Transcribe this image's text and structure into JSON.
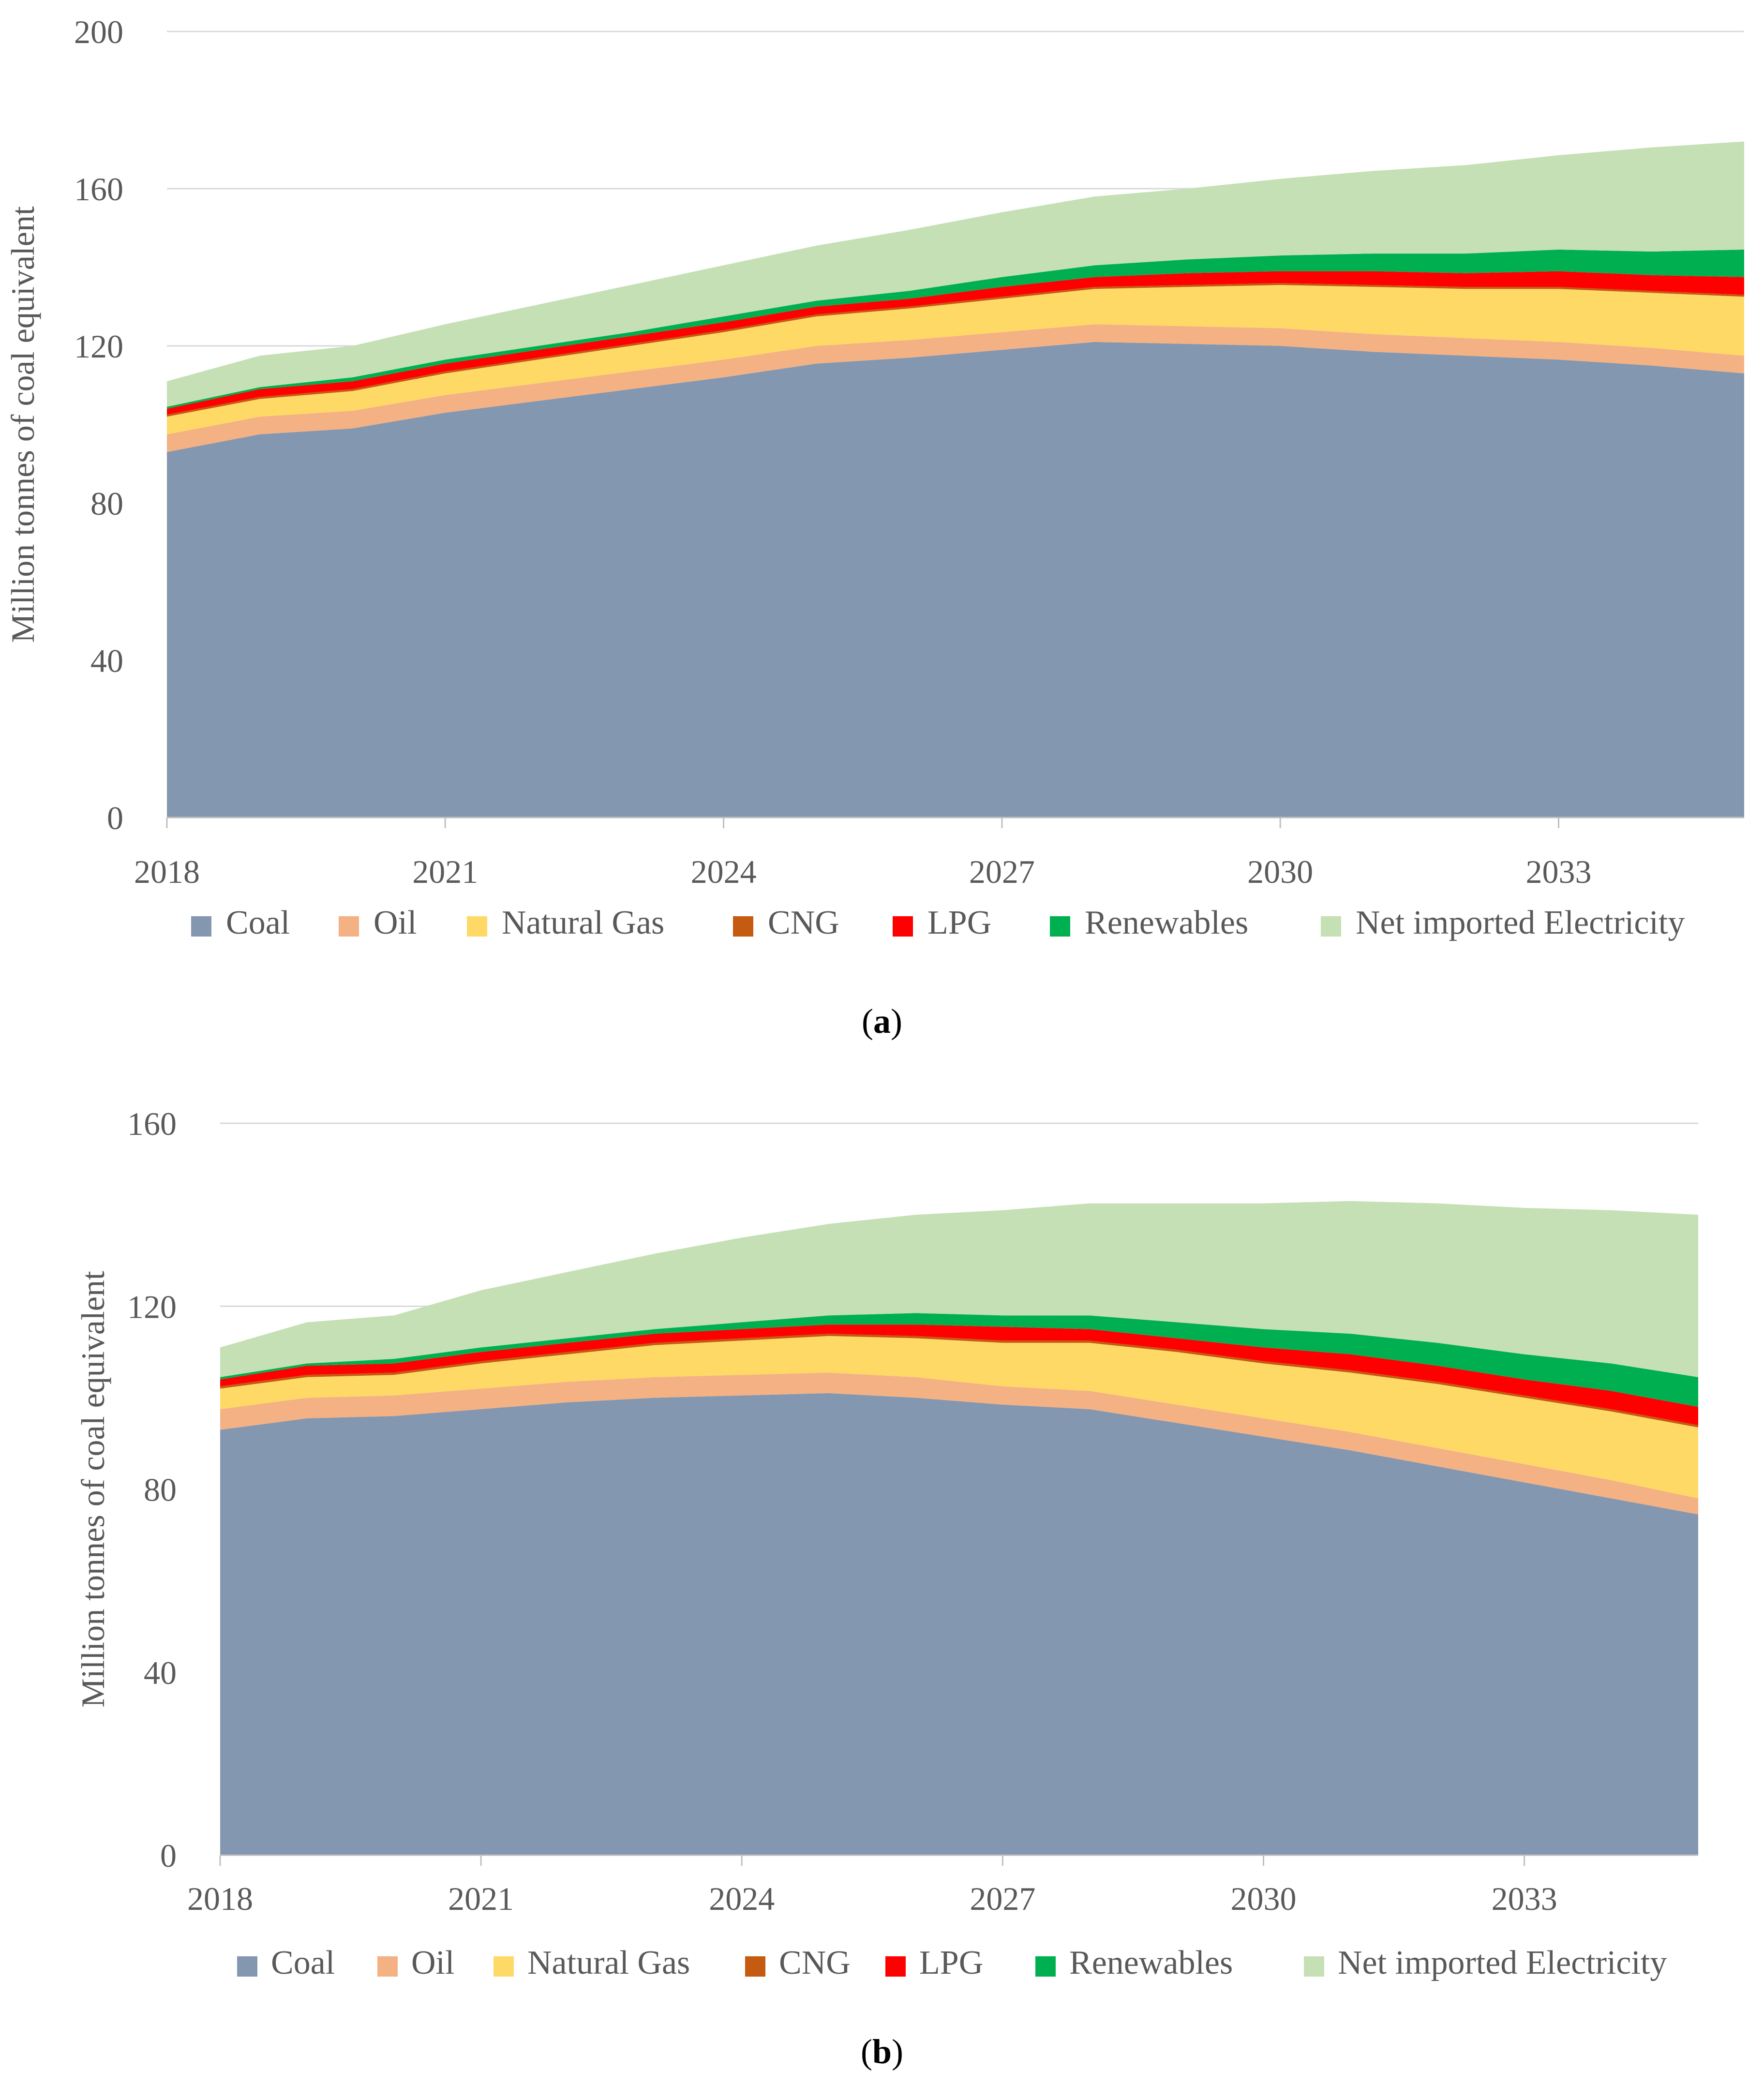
{
  "colors": {
    "Coal": "#8497b0",
    "Oil": "#f4b183",
    "Natural Gas": "#ffd966",
    "CNG": "#c55a11",
    "LPG": "#ff0000",
    "Renewables": "#00b050",
    "Net imported Electricity": "#c5e0b4",
    "grid": "#d9d9d9",
    "axis": "#bfbfbf"
  },
  "captions": {
    "a": "a",
    "b": "b"
  },
  "chart_data": [
    {
      "type": "area",
      "stacked": true,
      "id": "a",
      "title": "",
      "xlabel": "",
      "ylabel": "Million tonnes of coal equivalent",
      "ylim": [
        0,
        200
      ],
      "yticks": [
        0,
        40,
        80,
        120,
        160,
        200
      ],
      "xlim": [
        2018,
        2035
      ],
      "xticks": [
        2018,
        2021,
        2024,
        2027,
        2030,
        2033
      ],
      "grid": true,
      "legend_position": "bottom",
      "x": [
        2018,
        2019,
        2020,
        2021,
        2022,
        2023,
        2024,
        2025,
        2026,
        2027,
        2028,
        2029,
        2030,
        2031,
        2032,
        2033,
        2034,
        2035
      ],
      "series": [
        {
          "name": "Coal",
          "values": [
            93,
            97.5,
            99,
            103,
            106,
            109,
            112,
            115.5,
            117,
            119,
            121,
            120.5,
            120,
            118.5,
            117.5,
            116.5,
            115,
            113
          ]
        },
        {
          "name": "Oil",
          "values": [
            4.5,
            4.5,
            4.5,
            4.5,
            4.5,
            4.5,
            4.5,
            4.5,
            4.5,
            4.5,
            4.5,
            4.5,
            4.5,
            4.5,
            4.5,
            4.5,
            4.5,
            4.5
          ]
        },
        {
          "name": "Natural Gas",
          "values": [
            4.5,
            4.5,
            5,
            5.5,
            6,
            6.5,
            7,
            7.5,
            8,
            8.5,
            9,
            10,
            11,
            12,
            12.5,
            13.5,
            14,
            15
          ]
        },
        {
          "name": "CNG",
          "values": [
            0.5,
            0.5,
            0.5,
            0.5,
            0.5,
            0.5,
            0.5,
            0.5,
            0.5,
            0.5,
            0.5,
            0.5,
            0.5,
            0.5,
            0.5,
            0.5,
            0.5,
            0.5
          ]
        },
        {
          "name": "LPG",
          "values": [
            1.5,
            2,
            2,
            2,
            2,
            2,
            2,
            2,
            2,
            2.5,
            2.5,
            3,
            3,
            3.5,
            3.5,
            4,
            4,
            4.5
          ]
        },
        {
          "name": "Renewables",
          "values": [
            0.5,
            0.5,
            1,
            1,
            1,
            1,
            1.5,
            1.5,
            2,
            2.5,
            3,
            3.5,
            4,
            4.5,
            5,
            5.5,
            6,
            7
          ]
        },
        {
          "name": "Net imported Electricity",
          "values": [
            6.5,
            8,
            8,
            9,
            10.5,
            12,
            13,
            14,
            15.5,
            16.5,
            17.5,
            18,
            19.5,
            21,
            22.5,
            24,
            26.5,
            27.5
          ]
        }
      ]
    },
    {
      "type": "area",
      "stacked": true,
      "id": "b",
      "title": "",
      "xlabel": "",
      "ylabel": "Million tonnes of coal equivalent",
      "ylim": [
        0,
        160
      ],
      "yticks": [
        0,
        40,
        80,
        120,
        160
      ],
      "xlim": [
        2018,
        2035
      ],
      "xticks": [
        2018,
        2021,
        2024,
        2027,
        2030,
        2033
      ],
      "grid": true,
      "legend_position": "bottom",
      "x": [
        2018,
        2019,
        2020,
        2021,
        2022,
        2023,
        2024,
        2025,
        2026,
        2027,
        2028,
        2029,
        2030,
        2031,
        2032,
        2033,
        2034,
        2035
      ],
      "series": [
        {
          "name": "Coal",
          "values": [
            93,
            95.5,
            96,
            97.5,
            99,
            100,
            100.5,
            101,
            100,
            98.5,
            97.5,
            94.5,
            91.5,
            88.5,
            85,
            81.5,
            78,
            74.5
          ]
        },
        {
          "name": "Oil",
          "values": [
            4.5,
            4.5,
            4.5,
            4.5,
            4.5,
            4.5,
            4.5,
            4.5,
            4.5,
            4,
            4,
            4,
            4,
            4,
            4,
            4,
            4,
            3.5
          ]
        },
        {
          "name": "Natural Gas",
          "values": [
            4.5,
            4.5,
            4.5,
            5.5,
            6,
            7,
            7.5,
            8,
            8.5,
            9.5,
            10.5,
            11.5,
            12,
            13,
            14,
            14.5,
            15,
            15.5
          ]
        },
        {
          "name": "CNG",
          "values": [
            0.5,
            0.5,
            0.5,
            0.5,
            0.5,
            0.5,
            0.5,
            0.5,
            0.5,
            0.5,
            0.5,
            0.5,
            0.5,
            0.5,
            0.5,
            0.5,
            0.5,
            0.5
          ]
        },
        {
          "name": "LPG",
          "values": [
            1.5,
            2,
            2,
            2,
            2,
            2,
            2,
            2,
            2.5,
            3,
            2.5,
            2.5,
            3,
            3.5,
            3.5,
            3.5,
            4,
            4
          ]
        },
        {
          "name": "Renewables",
          "values": [
            0.5,
            0.5,
            1,
            1,
            1,
            1,
            1.5,
            2,
            2.5,
            2.5,
            3,
            3.5,
            4,
            4.5,
            5,
            5.5,
            6,
            6.5
          ]
        },
        {
          "name": "Net imported Electricity",
          "values": [
            6.5,
            9,
            9.5,
            12.5,
            14.5,
            16.5,
            18.5,
            20,
            21.5,
            23,
            24.5,
            26,
            27.5,
            29,
            30.5,
            32,
            33.5,
            35.5
          ]
        }
      ]
    }
  ]
}
